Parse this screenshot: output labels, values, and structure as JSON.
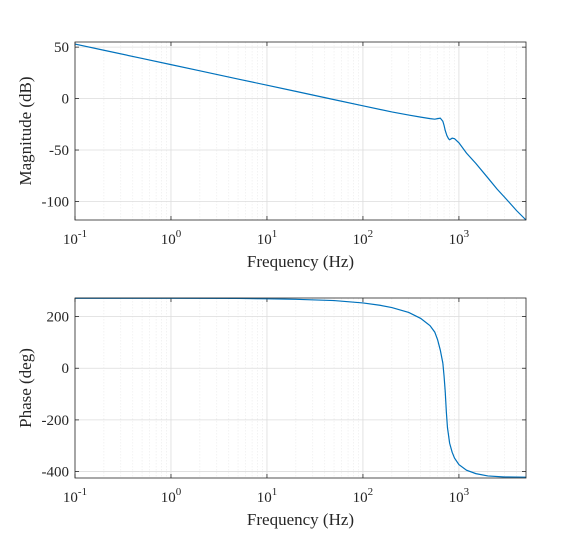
{
  "chart_data": [
    {
      "type": "line",
      "xscale": "log",
      "xlim": [
        0.1,
        5000
      ],
      "ylim": [
        -118,
        55
      ],
      "yticks": [
        50,
        0,
        -50,
        -100
      ],
      "ytick_labels": [
        "50",
        "0",
        "-50",
        "-100"
      ],
      "xticks": [
        0.1,
        1,
        10,
        100,
        1000
      ],
      "xtick_bases": [
        "10",
        "10",
        "10",
        "10",
        "10"
      ],
      "xtick_exps": [
        "-1",
        "0",
        "1",
        "2",
        "3"
      ],
      "xlabel": "Frequency (Hz)",
      "ylabel": "Magnitude (dB)",
      "grid": true,
      "series": [
        {
          "color": "#0072bd",
          "x": [
            0.1,
            0.2,
            0.5,
            1,
            2,
            5,
            10,
            20,
            50,
            100,
            200,
            300,
            400,
            500,
            560,
            600,
            640,
            680,
            700,
            720,
            750,
            780,
            800,
            850,
            900,
            950,
            1000,
            1200,
            1500,
            2000,
            2500,
            3000,
            4000,
            5000
          ],
          "y": [
            53,
            47,
            39,
            33,
            27,
            19,
            13,
            7,
            -1,
            -7,
            -13,
            -16,
            -18,
            -19.5,
            -20,
            -19.5,
            -19,
            -22,
            -26,
            -31,
            -36,
            -39,
            -40,
            -38.5,
            -39,
            -41,
            -43,
            -53,
            -63,
            -77,
            -88,
            -96,
            -109,
            -118
          ]
        }
      ]
    },
    {
      "type": "line",
      "xscale": "log",
      "xlim": [
        0.1,
        5000
      ],
      "ylim": [
        -425,
        272
      ],
      "yticks": [
        200,
        0,
        -200,
        -400
      ],
      "ytick_labels": [
        "200",
        "0",
        "-200",
        "-400"
      ],
      "xticks": [
        0.1,
        1,
        10,
        100,
        1000
      ],
      "xtick_bases": [
        "10",
        "10",
        "10",
        "10",
        "10"
      ],
      "xtick_exps": [
        "-1",
        "0",
        "1",
        "2",
        "3"
      ],
      "xlabel": "Frequency (Hz)",
      "ylabel": "Phase (deg)",
      "grid": true,
      "series": [
        {
          "color": "#0072bd",
          "x": [
            0.1,
            1,
            5,
            10,
            20,
            50,
            100,
            150,
            200,
            300,
            400,
            500,
            560,
            600,
            640,
            680,
            700,
            720,
            740,
            760,
            780,
            800,
            850,
            900,
            1000,
            1200,
            1500,
            2000,
            3000,
            5000
          ],
          "y": [
            271,
            271,
            270.5,
            269,
            267,
            262,
            253,
            244,
            235,
            216,
            193,
            165,
            140,
            110,
            70,
            20,
            -30,
            -90,
            -170,
            -230,
            -260,
            -290,
            -325,
            -348,
            -373,
            -395,
            -408,
            -417,
            -421,
            -422
          ]
        }
      ]
    }
  ]
}
